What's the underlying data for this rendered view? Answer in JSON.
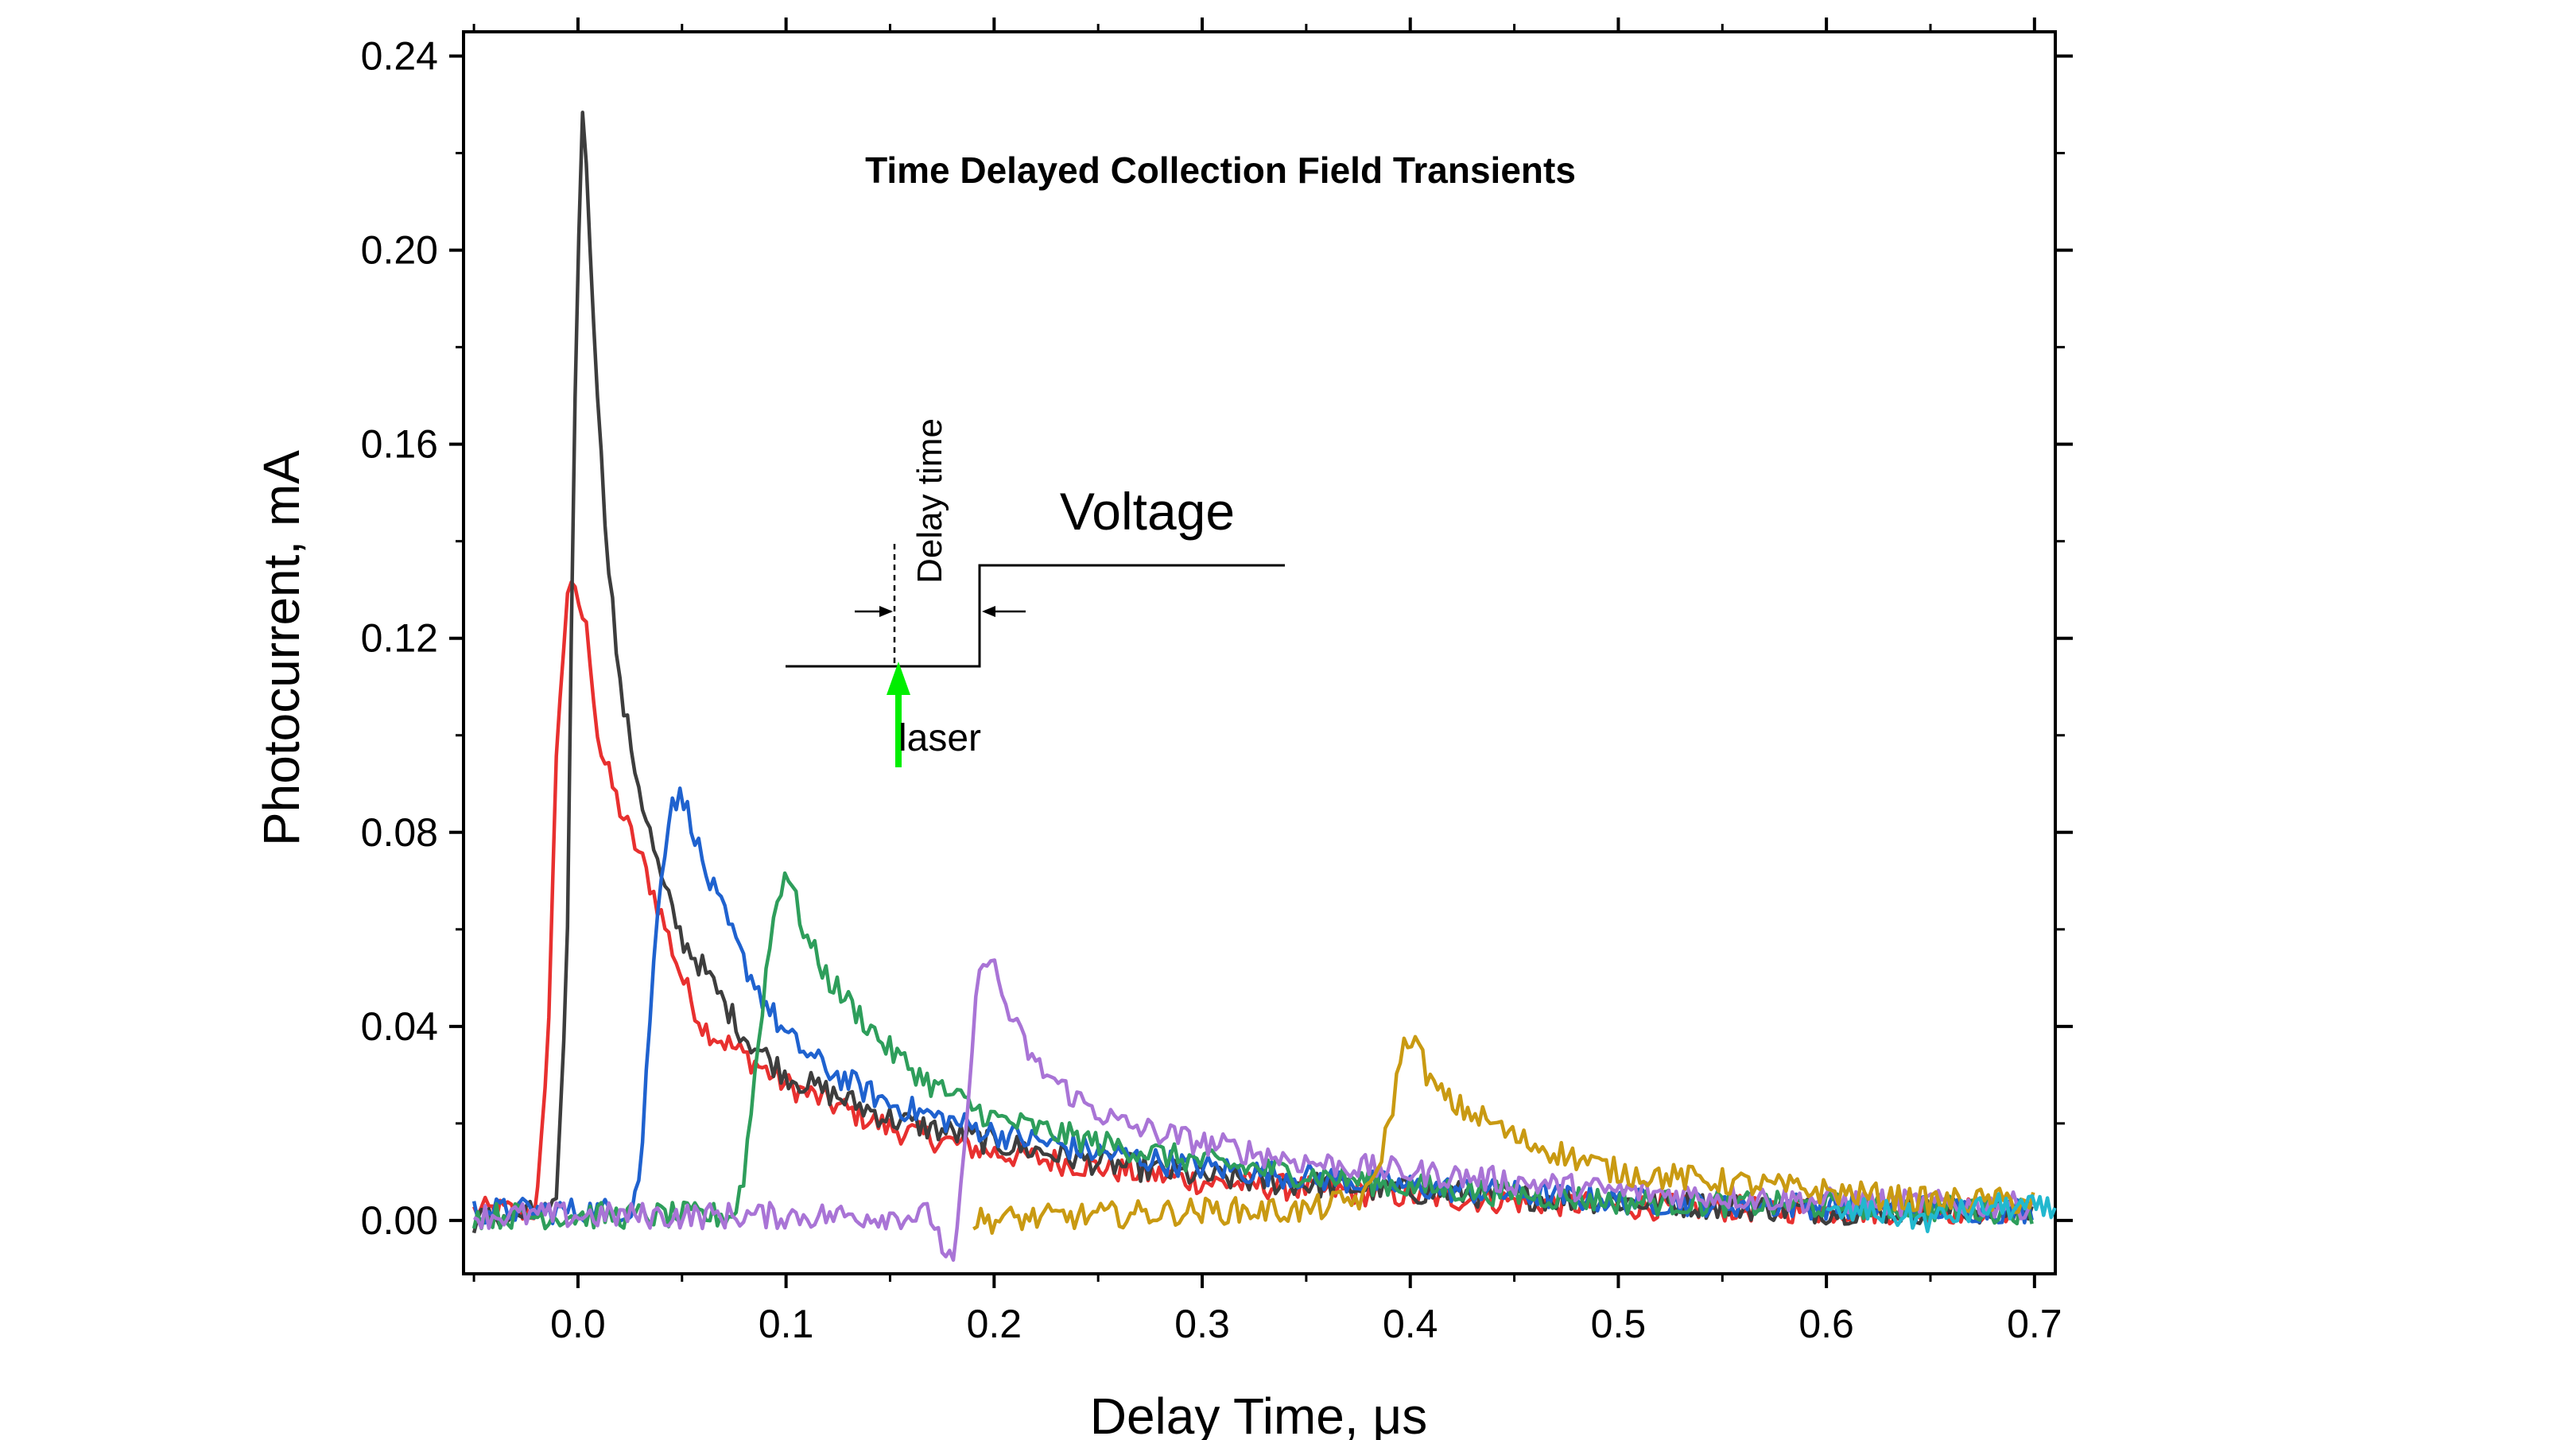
{
  "chart_data": {
    "type": "line",
    "title": "Time Delayed Collection Field Transients",
    "xlabel": "Delay Time, μs",
    "ylabel": "Photocurrent, mA",
    "xlim": [
      -0.055,
      0.71
    ],
    "ylim": [
      -0.011,
      0.245
    ],
    "x_ticks": [
      "0.0",
      "0.1",
      "0.2",
      "0.3",
      "0.4",
      "0.5",
      "0.6",
      "0.7"
    ],
    "x_tick_values": [
      0.0,
      0.1,
      0.2,
      0.3,
      0.4,
      0.5,
      0.6,
      0.7
    ],
    "y_ticks": [
      "0.00",
      "0.04",
      "0.08",
      "0.12",
      "0.16",
      "0.20",
      "0.24"
    ],
    "y_tick_values": [
      0.0,
      0.04,
      0.08,
      0.12,
      0.16,
      0.2,
      0.24
    ],
    "grid": false,
    "colors": {
      "axis": "#000000",
      "laser_arrow": "#00ee00"
    },
    "series": [
      {
        "color": "#e8302f",
        "points": [
          [
            -0.05,
            0.002
          ],
          [
            -0.02,
            0.002
          ],
          [
            -0.015,
            0.03
          ],
          [
            -0.01,
            0.1
          ],
          [
            -0.005,
            0.13
          ],
          [
            0.0,
            0.128
          ],
          [
            0.005,
            0.12
          ],
          [
            0.01,
            0.098
          ],
          [
            0.02,
            0.085
          ],
          [
            0.03,
            0.075
          ],
          [
            0.04,
            0.063
          ],
          [
            0.05,
            0.05
          ],
          [
            0.06,
            0.04
          ],
          [
            0.08,
            0.034
          ],
          [
            0.1,
            0.028
          ],
          [
            0.15,
            0.019
          ],
          [
            0.2,
            0.014
          ],
          [
            0.25,
            0.011
          ],
          [
            0.3,
            0.008
          ],
          [
            0.4,
            0.005
          ],
          [
            0.5,
            0.003
          ],
          [
            0.6,
            0.002
          ],
          [
            0.7,
            0.002
          ]
        ]
      },
      {
        "color": "#3d3d3d",
        "points": [
          [
            -0.05,
            0.0
          ],
          [
            -0.01,
            0.002
          ],
          [
            -0.005,
            0.06
          ],
          [
            -0.002,
            0.16
          ],
          [
            0.002,
            0.232
          ],
          [
            0.006,
            0.2
          ],
          [
            0.012,
            0.15
          ],
          [
            0.02,
            0.11
          ],
          [
            0.03,
            0.088
          ],
          [
            0.04,
            0.07
          ],
          [
            0.05,
            0.058
          ],
          [
            0.06,
            0.052
          ],
          [
            0.08,
            0.038
          ],
          [
            0.1,
            0.03
          ],
          [
            0.15,
            0.021
          ],
          [
            0.2,
            0.016
          ],
          [
            0.25,
            0.012
          ],
          [
            0.3,
            0.009
          ],
          [
            0.4,
            0.006
          ],
          [
            0.5,
            0.004
          ],
          [
            0.6,
            0.002
          ],
          [
            0.7,
            0.002
          ]
        ]
      },
      {
        "color": "#1f62cf",
        "points": [
          [
            -0.05,
            0.002
          ],
          [
            0.025,
            0.002
          ],
          [
            0.03,
            0.01
          ],
          [
            0.035,
            0.045
          ],
          [
            0.04,
            0.072
          ],
          [
            0.045,
            0.087
          ],
          [
            0.05,
            0.087
          ],
          [
            0.055,
            0.082
          ],
          [
            0.06,
            0.073
          ],
          [
            0.07,
            0.063
          ],
          [
            0.08,
            0.053
          ],
          [
            0.09,
            0.045
          ],
          [
            0.1,
            0.038
          ],
          [
            0.12,
            0.031
          ],
          [
            0.15,
            0.024
          ],
          [
            0.2,
            0.018
          ],
          [
            0.25,
            0.014
          ],
          [
            0.3,
            0.011
          ],
          [
            0.4,
            0.007
          ],
          [
            0.5,
            0.004
          ],
          [
            0.6,
            0.003
          ],
          [
            0.7,
            0.002
          ]
        ]
      },
      {
        "color": "#2e9e5b",
        "points": [
          [
            -0.05,
            0.001
          ],
          [
            0.075,
            0.001
          ],
          [
            0.08,
            0.01
          ],
          [
            0.085,
            0.03
          ],
          [
            0.09,
            0.05
          ],
          [
            0.095,
            0.065
          ],
          [
            0.1,
            0.073
          ],
          [
            0.105,
            0.065
          ],
          [
            0.11,
            0.058
          ],
          [
            0.12,
            0.05
          ],
          [
            0.13,
            0.045
          ],
          [
            0.15,
            0.035
          ],
          [
            0.17,
            0.028
          ],
          [
            0.2,
            0.021
          ],
          [
            0.25,
            0.016
          ],
          [
            0.3,
            0.012
          ],
          [
            0.4,
            0.007
          ],
          [
            0.5,
            0.004
          ],
          [
            0.6,
            0.003
          ],
          [
            0.7,
            0.002
          ]
        ]
      },
      {
        "color": "#a974d6",
        "points": [
          [
            -0.05,
            0.001
          ],
          [
            0.17,
            0.001
          ],
          [
            0.175,
            -0.005
          ],
          [
            0.18,
            -0.01
          ],
          [
            0.183,
            0.0
          ],
          [
            0.187,
            0.02
          ],
          [
            0.19,
            0.04
          ],
          [
            0.195,
            0.056
          ],
          [
            0.2,
            0.052
          ],
          [
            0.205,
            0.045
          ],
          [
            0.21,
            0.04
          ],
          [
            0.22,
            0.032
          ],
          [
            0.24,
            0.025
          ],
          [
            0.26,
            0.02
          ],
          [
            0.3,
            0.016
          ],
          [
            0.35,
            0.012
          ],
          [
            0.4,
            0.01
          ],
          [
            0.5,
            0.006
          ],
          [
            0.6,
            0.004
          ],
          [
            0.7,
            0.003
          ]
        ]
      },
      {
        "color": "#c99a12",
        "points": [
          [
            0.19,
            0.0
          ],
          [
            0.25,
            0.001
          ],
          [
            0.3,
            0.002
          ],
          [
            0.35,
            0.002
          ],
          [
            0.38,
            0.005
          ],
          [
            0.39,
            0.02
          ],
          [
            0.395,
            0.033
          ],
          [
            0.4,
            0.039
          ],
          [
            0.405,
            0.034
          ],
          [
            0.41,
            0.028
          ],
          [
            0.42,
            0.024
          ],
          [
            0.43,
            0.022
          ],
          [
            0.44,
            0.02
          ],
          [
            0.45,
            0.017
          ],
          [
            0.5,
            0.01
          ],
          [
            0.55,
            0.008
          ],
          [
            0.6,
            0.006
          ],
          [
            0.65,
            0.004
          ],
          [
            0.7,
            0.004
          ]
        ]
      },
      {
        "color": "#22b8cf",
        "points": [
          [
            0.6,
            0.001
          ],
          [
            0.62,
            0.002
          ],
          [
            0.65,
            0.0
          ],
          [
            0.68,
            0.003
          ],
          [
            0.71,
            0.002
          ]
        ]
      }
    ],
    "annotations": {
      "voltage_label": "Voltage",
      "delay_time_label": "Delay time",
      "laser_label": "laser"
    }
  }
}
